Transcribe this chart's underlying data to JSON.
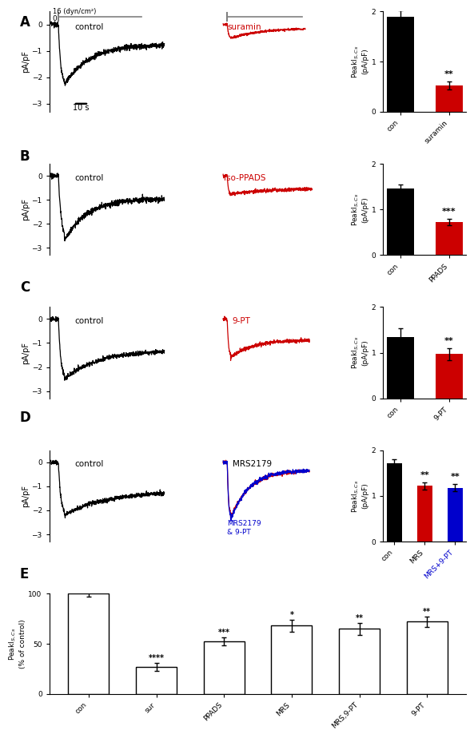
{
  "panel_labels": [
    "A",
    "B",
    "C",
    "D",
    "E"
  ],
  "bar_A": {
    "con": 1.9,
    "drug": 0.52,
    "con_err": 0.12,
    "drug_err": 0.08,
    "drug_color": "#cc0000",
    "drug_label": "suramin",
    "sig": "**"
  },
  "bar_B": {
    "con": 1.45,
    "drug": 0.72,
    "con_err": 0.1,
    "drug_err": 0.07,
    "drug_color": "#cc0000",
    "drug_label": "PPADS",
    "sig": "***"
  },
  "bar_C": {
    "con": 1.35,
    "drug": 0.97,
    "con_err": 0.18,
    "drug_err": 0.13,
    "drug_color": "#cc0000",
    "drug_label": "9-PT",
    "sig": "**"
  },
  "bar_D": {
    "con": 1.72,
    "mrs": 1.22,
    "mrs9pt": 1.18,
    "con_err": 0.08,
    "mrs_err": 0.08,
    "mrs9pt_err": 0.08,
    "mrs_color": "#cc0000",
    "mrs9pt_color": "#0000cc",
    "sig_mrs": "**",
    "sig_mrs9pt": "**"
  },
  "bar_E": {
    "categories": [
      "con",
      "sur",
      "PPADS",
      "MRS",
      "MRS,9-PT",
      "9-PT"
    ],
    "values": [
      100,
      27,
      52,
      68,
      65,
      72
    ],
    "errors": [
      3,
      4,
      4,
      6,
      6,
      5
    ],
    "sig": [
      "",
      "****",
      "***",
      "*",
      "**",
      "**"
    ]
  },
  "trace_color_black": "#000000",
  "trace_color_red": "#cc0000",
  "trace_color_blue": "#0000cc",
  "ylabel_trace": "pA/pF",
  "bar_ylim": [
    0,
    2
  ],
  "bar_yticks": [
    0,
    1,
    2
  ],
  "E_ylim": [
    0,
    100
  ],
  "E_yticks": [
    0,
    50,
    100
  ],
  "trace_ylim": [
    -3.3,
    0.5
  ],
  "trace_yticks": [
    -3,
    -2,
    -1,
    0
  ],
  "bg_color": "#ffffff"
}
